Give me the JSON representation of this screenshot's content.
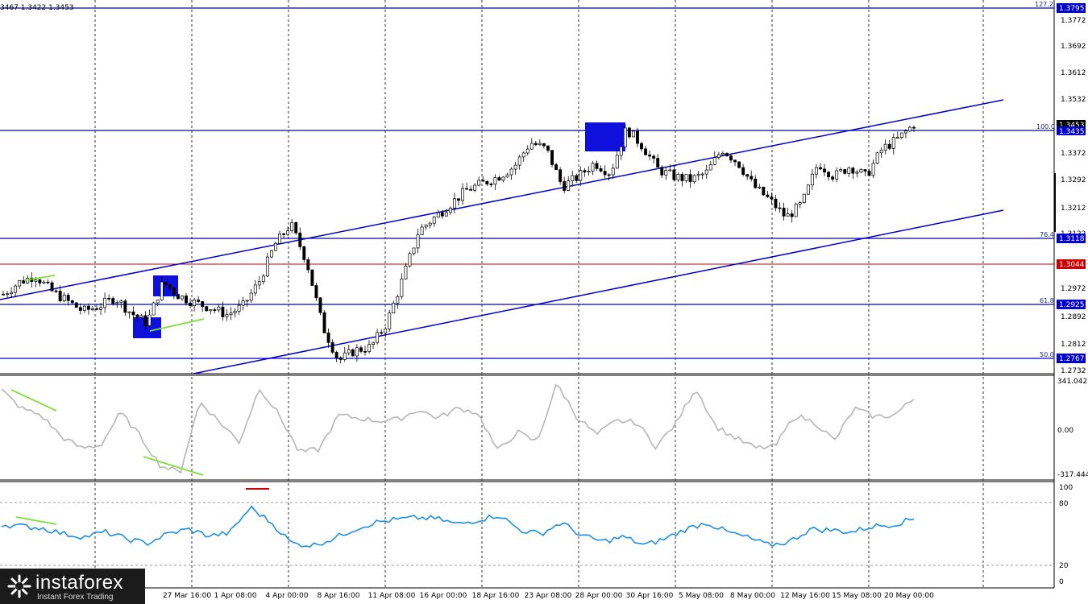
{
  "header": {
    "ohlc_text": "3467 1.3422 1.3453"
  },
  "price_axis": {
    "ticks": [
      "1.3772",
      "1.3692",
      "1.3612",
      "1.3532",
      "1.3372",
      "1.3292",
      "1.3212",
      "1.3122",
      "1.2972",
      "1.2892",
      "1.2812",
      "1.2732"
    ],
    "labels": {
      "fib_1272": "1.3795",
      "current": "1.3453",
      "fib_100": "1.3435",
      "fib_764": "1.3118",
      "red_level": "1.3044",
      "fib_618": "1.2925",
      "fib_50": "1.2767"
    }
  },
  "fib_levels": [
    {
      "name": "127.2",
      "label": "127.2"
    },
    {
      "name": "100.0",
      "label": "100.0"
    },
    {
      "name": "76.4",
      "label": "76.4"
    },
    {
      "name": "61.8",
      "label": "61.8"
    },
    {
      "name": "50.0",
      "label": "50.0"
    }
  ],
  "cci_axis": {
    "top": "341.0423",
    "mid": "0.00",
    "bottom": "-317.444"
  },
  "rsi_axis": {
    "t100": "100",
    "t80": "80",
    "t20": "20",
    "t0": "0"
  },
  "time_axis": [
    "27 Mar 16:00",
    "1 Apr 08:00",
    "4 Apr 00:00",
    "8 Apr 16:00",
    "11 Apr 08:00",
    "16 Apr 00:00",
    "18 Apr 16:00",
    "23 Apr 08:00",
    "28 Apr 00:00",
    "30 Apr 16:00",
    "5 May 08:00",
    "8 May 00:00",
    "12 May 16:00",
    "15 May 08:00",
    "20 May 00:00"
  ],
  "logo": {
    "brand": "instaforex",
    "tagline": "Instant Forex Trading"
  },
  "colors": {
    "level_line": "#0000cc",
    "red_line": "#cc0000",
    "candle": "#000000",
    "cci": "#b5b5b5",
    "rsi": "#1e8fe6",
    "divergence": "#7fe03a",
    "box": "#1010dd"
  },
  "chart_data": {
    "type": "candlestick",
    "indicators": [
      "CCI",
      "RSI"
    ],
    "ylim": [
      1.27,
      1.381
    ],
    "horizontal_levels": [
      1.3795,
      1.3435,
      1.3118,
      1.3044,
      1.2925,
      1.2767
    ],
    "close_path": [
      1.2955,
      1.299,
      1.301,
      1.2965,
      1.2935,
      1.2905,
      1.292,
      1.2945,
      1.29,
      1.287,
      1.299,
      1.295,
      1.293,
      1.2915,
      1.2895,
      1.292,
      1.299,
      1.31,
      1.316,
      1.305,
      1.286,
      1.276,
      1.279,
      1.28,
      1.287,
      1.3,
      1.314,
      1.318,
      1.322,
      1.326,
      1.328,
      1.33,
      1.333,
      1.34,
      1.338,
      1.327,
      1.33,
      1.334,
      1.331,
      1.344,
      1.339,
      1.332,
      1.33,
      1.329,
      1.331,
      1.338,
      1.334,
      1.327,
      1.323,
      1.318,
      1.322,
      1.334,
      1.33,
      1.333,
      1.33,
      1.338,
      1.341,
      1.3453
    ],
    "cci_path": [
      280,
      150,
      100,
      -50,
      -130,
      -110,
      120,
      -50,
      -250,
      -300,
      200,
      50,
      -90,
      300,
      100,
      -160,
      -140,
      100,
      80,
      60,
      70,
      140,
      80,
      150,
      120,
      -150,
      -20,
      -90,
      330,
      90,
      -40,
      60,
      50,
      -120,
      40,
      300,
      20,
      -60,
      -130,
      -120,
      100,
      50,
      -80,
      150,
      90,
      100,
      220
    ],
    "rsi_path": [
      60,
      58,
      56,
      50,
      47,
      52,
      45,
      40,
      50,
      55,
      48,
      51,
      78,
      62,
      40,
      38,
      45,
      55,
      62,
      65,
      67,
      66,
      60,
      65,
      70,
      54,
      50,
      62,
      48,
      42,
      47,
      38,
      45,
      55,
      62,
      52,
      46,
      38,
      42,
      55,
      54,
      52,
      58,
      60,
      66
    ]
  }
}
